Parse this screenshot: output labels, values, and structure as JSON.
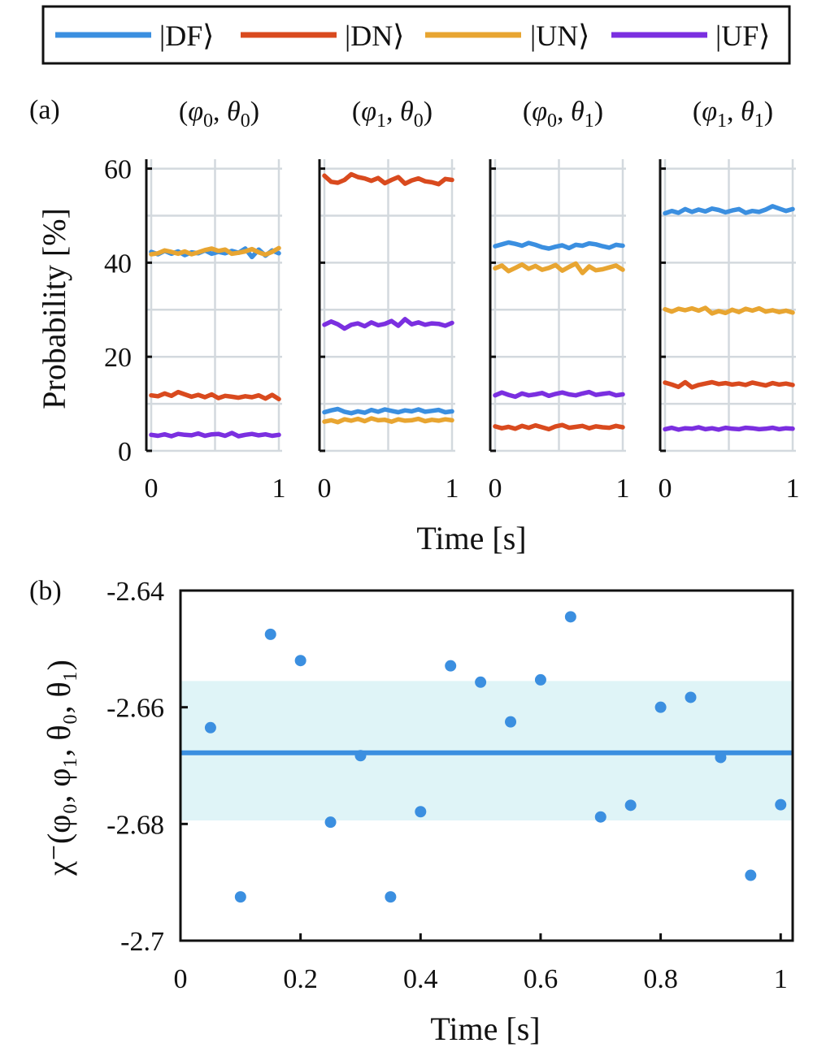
{
  "figure": {
    "panel_a_label": "(a)",
    "panel_b_label": "(b)"
  },
  "legend": {
    "entries": [
      {
        "label": "|DF⟩",
        "color": "#3b8fe0"
      },
      {
        "label": "|DN⟩",
        "color": "#d94a1e"
      },
      {
        "label": "|UN⟩",
        "color": "#e8a531"
      },
      {
        "label": "|UF⟩",
        "color": "#7b2fe0"
      }
    ]
  },
  "chart_data": [
    {
      "type": "line",
      "panel": "a",
      "ylabel": "Probability [%]",
      "xlabel": "Time [s]",
      "ylim": [
        0,
        62
      ],
      "xlim": [
        0,
        1
      ],
      "yticks": [
        "0",
        "20",
        "40",
        "60"
      ],
      "xticks": [
        "0",
        "1"
      ],
      "grid": true,
      "subplots": [
        {
          "title": "(φ₀, θ₀)",
          "title_parts": [
            "(",
            "φ",
            "0",
            ", ",
            "θ",
            "0",
            ")"
          ],
          "show_yticks": true,
          "series": [
            {
              "name": "|DF⟩",
              "color": "#3b8fe0",
              "values": [
                42.3,
                41.8,
                42.5,
                41.9,
                42.4,
                41.6,
                42.2,
                42.0,
                42.6,
                41.9,
                42.3,
                42.0,
                42.5,
                42.1,
                43.0,
                41.2,
                42.8,
                41.5,
                42.6,
                42.0
              ]
            },
            {
              "name": "|DN⟩",
              "color": "#d94a1e",
              "values": [
                11.8,
                11.6,
                12.2,
                11.7,
                12.5,
                12.0,
                11.5,
                11.9,
                11.4,
                12.0,
                11.2,
                11.7,
                11.5,
                11.3,
                11.6,
                11.4,
                11.8,
                11.1,
                11.9,
                11.0
              ]
            },
            {
              "name": "|UN⟩",
              "color": "#e8a531",
              "values": [
                41.8,
                42.0,
                42.6,
                42.3,
                41.9,
                42.4,
                41.8,
                42.2,
                42.7,
                43.0,
                42.5,
                42.8,
                41.9,
                42.1,
                42.4,
                42.9,
                42.2,
                41.7,
                42.3,
                43.1
              ]
            },
            {
              "name": "|UF⟩",
              "color": "#7b2fe0",
              "values": [
                3.4,
                3.2,
                3.5,
                3.1,
                3.6,
                3.4,
                3.3,
                3.7,
                3.2,
                3.5,
                3.6,
                3.2,
                3.8,
                3.1,
                3.4,
                3.6,
                3.3,
                3.5,
                3.2,
                3.4
              ]
            }
          ]
        },
        {
          "title": "(φ₁, θ₀)",
          "title_parts": [
            "(",
            "φ",
            "1",
            ", ",
            "θ",
            "0",
            ")"
          ],
          "show_yticks": false,
          "series": [
            {
              "name": "|DF⟩",
              "color": "#3b8fe0",
              "values": [
                8.2,
                8.6,
                8.9,
                8.3,
                8.0,
                8.4,
                8.1,
                8.7,
                8.3,
                8.8,
                8.5,
                8.2,
                8.6,
                8.4,
                8.8,
                8.3,
                8.5,
                8.7,
                8.2,
                8.4
              ]
            },
            {
              "name": "|DN⟩",
              "color": "#d94a1e",
              "values": [
                58.5,
                57.2,
                57.0,
                57.6,
                58.8,
                58.2,
                57.9,
                57.4,
                58.0,
                56.9,
                57.6,
                58.2,
                56.8,
                57.5,
                57.9,
                57.3,
                57.1,
                56.7,
                57.8,
                57.6
              ]
            },
            {
              "name": "|UN⟩",
              "color": "#e8a531",
              "values": [
                6.2,
                6.5,
                6.1,
                6.7,
                6.4,
                6.8,
                6.3,
                6.9,
                6.5,
                6.6,
                6.2,
                6.7,
                6.4,
                6.5,
                6.8,
                6.3,
                6.6,
                6.4,
                6.7,
                6.5
              ]
            },
            {
              "name": "|UF⟩",
              "color": "#7b2fe0",
              "values": [
                26.8,
                27.5,
                26.9,
                26.0,
                26.8,
                27.1,
                26.5,
                27.3,
                26.7,
                27.0,
                27.6,
                26.6,
                28.0,
                26.9,
                27.3,
                26.8,
                27.1,
                27.0,
                26.6,
                27.2
              ]
            }
          ]
        },
        {
          "title": "(φ₀, θ₁)",
          "title_parts": [
            "(",
            "φ",
            "0",
            ", ",
            "θ",
            "1",
            ")"
          ],
          "show_yticks": false,
          "series": [
            {
              "name": "|DF⟩",
              "color": "#3b8fe0",
              "values": [
                43.5,
                43.9,
                44.3,
                44.0,
                43.6,
                44.2,
                43.8,
                43.3,
                43.0,
                43.4,
                43.7,
                43.1,
                43.8,
                43.6,
                44.1,
                43.9,
                43.5,
                43.2,
                43.8,
                43.6
              ]
            },
            {
              "name": "|UN⟩",
              "color": "#e8a531",
              "values": [
                38.8,
                39.4,
                38.2,
                38.9,
                39.6,
                38.7,
                39.3,
                38.5,
                38.9,
                39.5,
                38.3,
                39.1,
                39.8,
                37.8,
                39.2,
                38.4,
                38.6,
                39.0,
                39.4,
                38.5
              ]
            },
            {
              "name": "|UF⟩",
              "color": "#7b2fe0",
              "values": [
                11.8,
                12.4,
                11.9,
                11.5,
                12.2,
                11.8,
                12.0,
                12.3,
                11.7,
                12.1,
                12.4,
                12.0,
                11.8,
                12.2,
                12.5,
                11.9,
                12.1,
                12.3,
                11.8,
                12.0
              ]
            },
            {
              "name": "|DN⟩",
              "color": "#d94a1e",
              "values": [
                5.2,
                4.8,
                5.1,
                4.7,
                5.3,
                4.9,
                5.4,
                5.0,
                4.6,
                5.2,
                5.5,
                4.9,
                5.1,
                5.3,
                4.8,
                5.2,
                5.0,
                4.9,
                5.3,
                5.0
              ]
            }
          ]
        },
        {
          "title": "(φ₁, θ₁)",
          "title_parts": [
            "(",
            "φ",
            "1",
            ", ",
            "θ",
            "1",
            ")"
          ],
          "show_yticks": false,
          "series": [
            {
              "name": "|DF⟩",
              "color": "#3b8fe0",
              "values": [
                50.5,
                51.0,
                50.6,
                51.4,
                50.8,
                51.3,
                50.9,
                51.5,
                51.2,
                50.7,
                51.1,
                51.4,
                50.6,
                51.0,
                50.8,
                51.3,
                52.0,
                51.5,
                51.0,
                51.4
              ]
            },
            {
              "name": "|UN⟩",
              "color": "#e8a531",
              "values": [
                30.1,
                29.6,
                30.2,
                29.9,
                30.3,
                29.8,
                30.4,
                29.2,
                29.7,
                29.3,
                30.0,
                29.5,
                30.2,
                29.8,
                30.3,
                29.6,
                29.9,
                29.5,
                29.8,
                29.4
              ]
            },
            {
              "name": "|DN⟩",
              "color": "#d94a1e",
              "values": [
                14.5,
                14.1,
                13.6,
                14.6,
                13.5,
                14.0,
                14.3,
                14.6,
                14.2,
                14.4,
                14.1,
                14.3,
                14.0,
                14.5,
                14.2,
                13.9,
                14.4,
                14.1,
                14.3,
                14.0
              ]
            },
            {
              "name": "|UF⟩",
              "color": "#7b2fe0",
              "values": [
                4.6,
                4.9,
                4.5,
                4.8,
                4.7,
                5.0,
                4.6,
                4.8,
                4.5,
                4.9,
                4.7,
                4.6,
                4.9,
                4.8,
                4.6,
                4.7,
                4.9,
                4.6,
                4.8,
                4.7
              ]
            }
          ]
        }
      ]
    },
    {
      "type": "scatter",
      "panel": "b",
      "xlabel": "Time [s]",
      "ylabel": "χ⁻(φ₀, φ₁, θ₀, θ₁)",
      "xlim": [
        0,
        1.02
      ],
      "ylim": [
        -2.7,
        -2.64
      ],
      "xticks": [
        "0",
        "0.2",
        "0.4",
        "0.6",
        "0.8",
        "1"
      ],
      "yticks": [
        "-2.64",
        "-2.66",
        "-2.68",
        "-2.7"
      ],
      "grid": false,
      "color": "#3b8fe0",
      "band_color": "#dff4f7",
      "mean": -2.6678,
      "band": [
        -2.6794,
        -2.6555
      ],
      "x": [
        0.05,
        0.1,
        0.15,
        0.2,
        0.25,
        0.3,
        0.35,
        0.4,
        0.45,
        0.5,
        0.55,
        0.6,
        0.65,
        0.7,
        0.75,
        0.8,
        0.85,
        0.9,
        0.95,
        1.0
      ],
      "y": [
        -2.6635,
        -2.6925,
        -2.6475,
        -2.652,
        -2.6797,
        -2.6683,
        -2.6925,
        -2.6779,
        -2.6529,
        -2.6557,
        -2.6625,
        -2.6553,
        -2.6445,
        -2.6788,
        -2.6768,
        -2.66,
        -2.6583,
        -2.6686,
        -2.6888,
        -2.6767
      ]
    }
  ]
}
